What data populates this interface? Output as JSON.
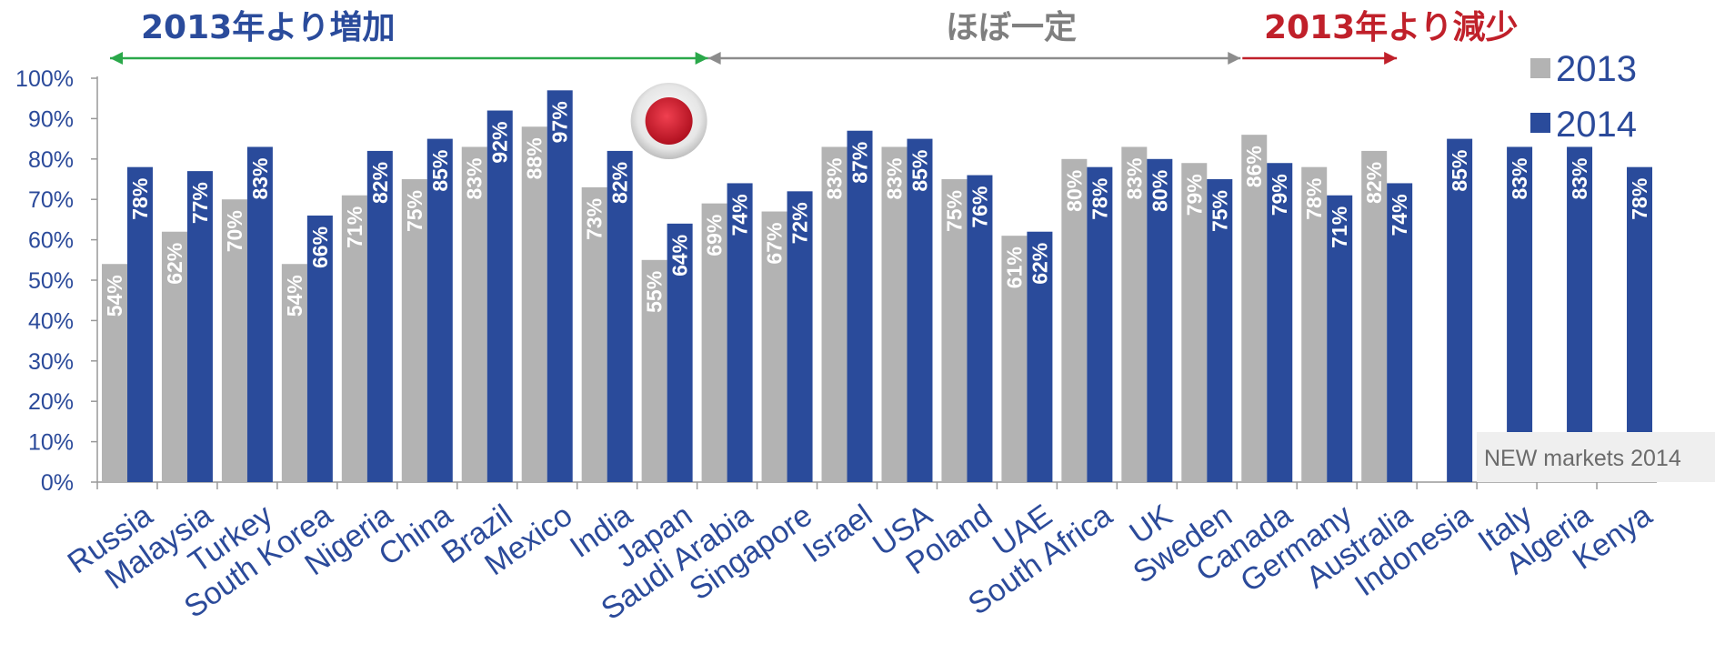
{
  "chart_data": {
    "type": "bar",
    "categories": [
      "Russia",
      "Malaysia",
      "Turkey",
      "South Korea",
      "Nigeria",
      "China",
      "Brazil",
      "Mexico",
      "India",
      "Japan",
      "Saudi Arabia",
      "Singapore",
      "Israel",
      "USA",
      "Poland",
      "UAE",
      "South Africa",
      "UK",
      "Sweden",
      "Canada",
      "Germany",
      "Australia",
      "Indonesia",
      "Italy",
      "Algeria",
      "Kenya"
    ],
    "series": [
      {
        "name": "2013",
        "color": "#b3b3b3",
        "values": [
          54,
          62,
          70,
          54,
          71,
          75,
          83,
          88,
          73,
          55,
          69,
          67,
          83,
          83,
          75,
          61,
          80,
          83,
          79,
          86,
          78,
          82,
          null,
          null,
          null,
          null
        ]
      },
      {
        "name": "2014",
        "color": "#2a4b9b",
        "values": [
          78,
          77,
          83,
          66,
          82,
          85,
          92,
          97,
          82,
          64,
          74,
          72,
          87,
          85,
          76,
          62,
          78,
          80,
          75,
          79,
          71,
          74,
          85,
          83,
          83,
          78
        ]
      }
    ],
    "data_labels": {
      "2013": [
        "54%",
        "62%",
        "70%",
        "54%",
        "71%",
        "75%",
        "83%",
        "88%",
        "73%",
        "55%",
        "69%",
        "67%",
        "83%",
        "83%",
        "75%",
        "61%",
        "80%",
        "83%",
        "79%",
        "86%",
        "78%",
        "82%",
        "",
        "",
        "",
        ""
      ],
      "2014": [
        "78%",
        "77%",
        "83%",
        "66%",
        "82%",
        "85%",
        "92%",
        "97%",
        "82%",
        "64%",
        "74%",
        "72%",
        "87%",
        "85%",
        "76%",
        "62%",
        "78%",
        "80%",
        "75%",
        "79%",
        "71%",
        "74%",
        "85%",
        "83%",
        "83%",
        "78%"
      ]
    },
    "yticks": [
      "0%",
      "10%",
      "20%",
      "30%",
      "40%",
      "50%",
      "60%",
      "70%",
      "80%",
      "90%",
      "100%"
    ],
    "ylim": [
      0,
      100
    ],
    "legend_position": "top-right",
    "grid": false,
    "annotations": [
      {
        "text": "2013年より増加",
        "color": "#2a4b9b",
        "arrow_color": "#2aa84a",
        "from_category": "Russia",
        "to_category": "Saudi Arabia"
      },
      {
        "text": "ほぼ一定",
        "color": "#7f7f7f",
        "arrow_color": "#8c8c8c",
        "from_category": "Saudi Arabia",
        "to_category": "Canada"
      },
      {
        "text": "2013年より減少",
        "color": "#c0202a",
        "arrow_color": "#c0202a",
        "from_category": "Canada",
        "to_category": "Australia"
      }
    ],
    "new_markets_label": "NEW markets 2014",
    "highlight_marker": {
      "category": "Japan",
      "icon": "japan-flag-icon",
      "color": "#c8102e"
    }
  }
}
